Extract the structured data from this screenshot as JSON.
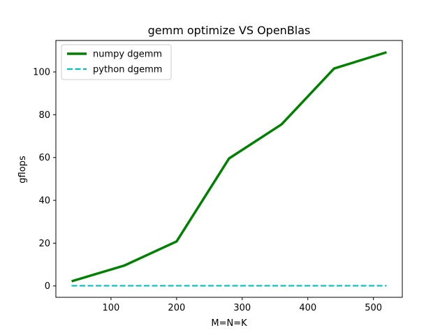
{
  "chart_data": {
    "type": "line",
    "title": "gemm optimize VS OpenBlas",
    "xlabel": "M=N=K",
    "ylabel": "gflops",
    "xlim": [
      16,
      544
    ],
    "ylim": [
      -5.3,
      114.7
    ],
    "xticks": [
      100,
      200,
      300,
      400,
      500
    ],
    "yticks": [
      0,
      20,
      40,
      60,
      80,
      100
    ],
    "grid": false,
    "legend_position": "top-left",
    "series": [
      {
        "name": "numpy dgemm",
        "color": "#008000",
        "style": "solid",
        "x": [
          40,
          120,
          200,
          280,
          360,
          440,
          520
        ],
        "values": [
          2.2,
          9.5,
          20.8,
          59.6,
          75.5,
          101.6,
          109.2
        ]
      },
      {
        "name": "python dgemm",
        "color": "#00bfbf",
        "style": "dashed",
        "x": [
          40,
          120,
          200,
          280,
          360,
          440,
          520
        ],
        "values": [
          0.1,
          0.1,
          0.1,
          0.1,
          0.1,
          0.1,
          0.1
        ]
      }
    ]
  }
}
